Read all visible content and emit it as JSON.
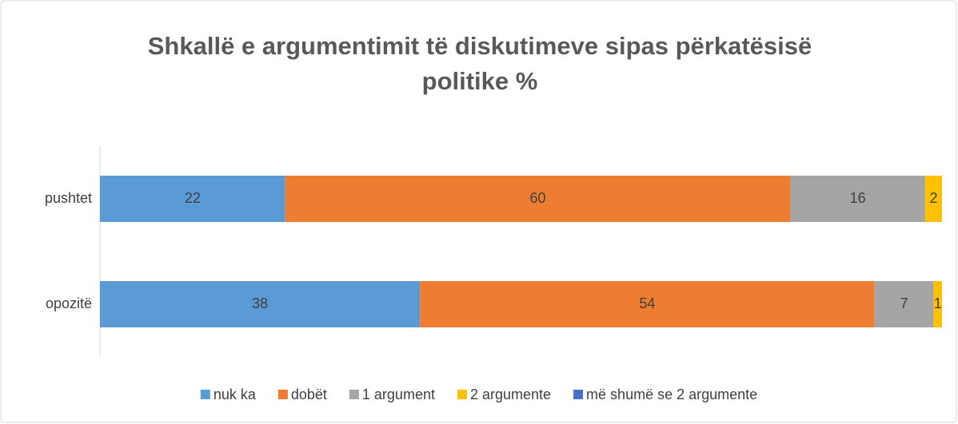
{
  "chart_data": {
    "type": "stacked-bar-horizontal",
    "title": "Shkallë e argumentimit të diskutimeve sipas përkatësisë politike %",
    "categories": [
      "pushtet",
      "opozitë"
    ],
    "series": [
      {
        "name": "nuk ka",
        "color": "#5b9bd5",
        "values": [
          22,
          38
        ]
      },
      {
        "name": "dobët",
        "color": "#ed7d31",
        "values": [
          60,
          54
        ]
      },
      {
        "name": "1 argument",
        "color": "#a5a5a5",
        "values": [
          16,
          7
        ]
      },
      {
        "name": "2 argumente",
        "color": "#ffc000",
        "values": [
          2,
          1
        ]
      },
      {
        "name": "më shumë se 2 argumente",
        "color": "#4472c4",
        "values": [
          0,
          0
        ]
      }
    ],
    "xlim": [
      0,
      100
    ],
    "legend": "bottom"
  }
}
